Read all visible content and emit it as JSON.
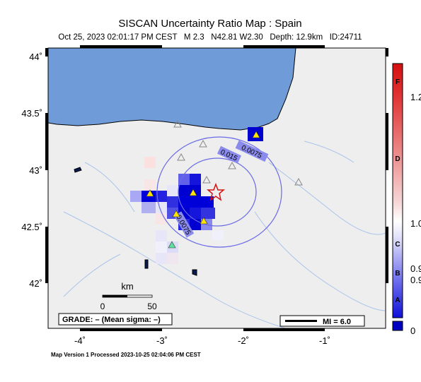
{
  "header": {
    "title": "SISCAN Uncertainty Ratio Map : Spain",
    "subtitle": "Oct 25, 2023 02:01:17 PM CEST   M 2.3   N42.81 W2.30   Depth: 12.9km   ID:24711"
  },
  "map": {
    "lat_labels": [
      "44˚",
      "43.5˚",
      "43˚",
      "42.5˚",
      "42˚"
    ],
    "lon_labels": [
      "-4˚",
      "-3˚",
      "-2˚",
      "-1˚"
    ],
    "scale_bar": {
      "unit": "km",
      "start": "0",
      "end": "50"
    },
    "grade": "GRADE: – (Mean sigma: –)",
    "mi": "MI = 6.0",
    "contour_labels": [
      "0.015",
      "0.0075",
      "0.0075"
    ]
  },
  "colorbar": {
    "letters": [
      "F",
      "D",
      "C",
      "B",
      "A"
    ],
    "ticks": [
      "1.2",
      "1.0",
      "0.9",
      "0.9",
      "0"
    ]
  },
  "footer": "Map Version 1 Processed 2023-10-25 02:04:06 PM CEST"
}
